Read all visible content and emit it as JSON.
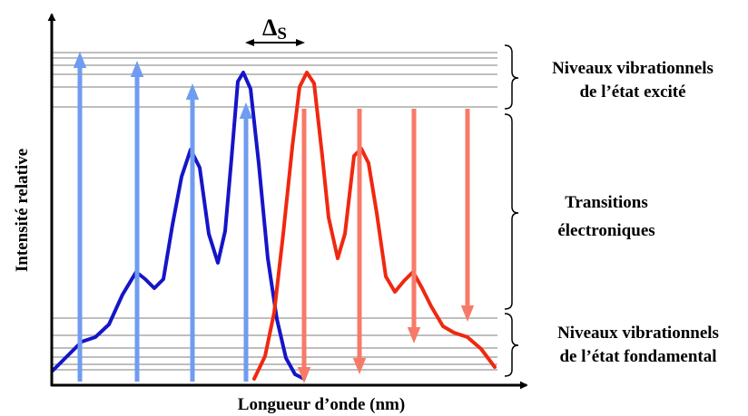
{
  "labels": {
    "y_axis": "Intensité relative",
    "x_axis": "Longueur d’onde (nm)",
    "stokes_delta": "Δ",
    "stokes_sub": "S",
    "excited_line1": "Niveaux vibrationnels",
    "excited_line2": "de l’état excité",
    "transitions_line1": "Transitions",
    "transitions_line2": "électroniques",
    "ground_line1": "Niveaux vibrationnels",
    "ground_line2": "de l’état fondamental"
  },
  "colors": {
    "absorption_curve": "#1515c8",
    "emission_curve": "#f02810",
    "absorption_arrow": "#6f9cf0",
    "emission_arrow": "#f77a68",
    "level_line": "#a8a8a8",
    "axis": "#000000"
  }
}
